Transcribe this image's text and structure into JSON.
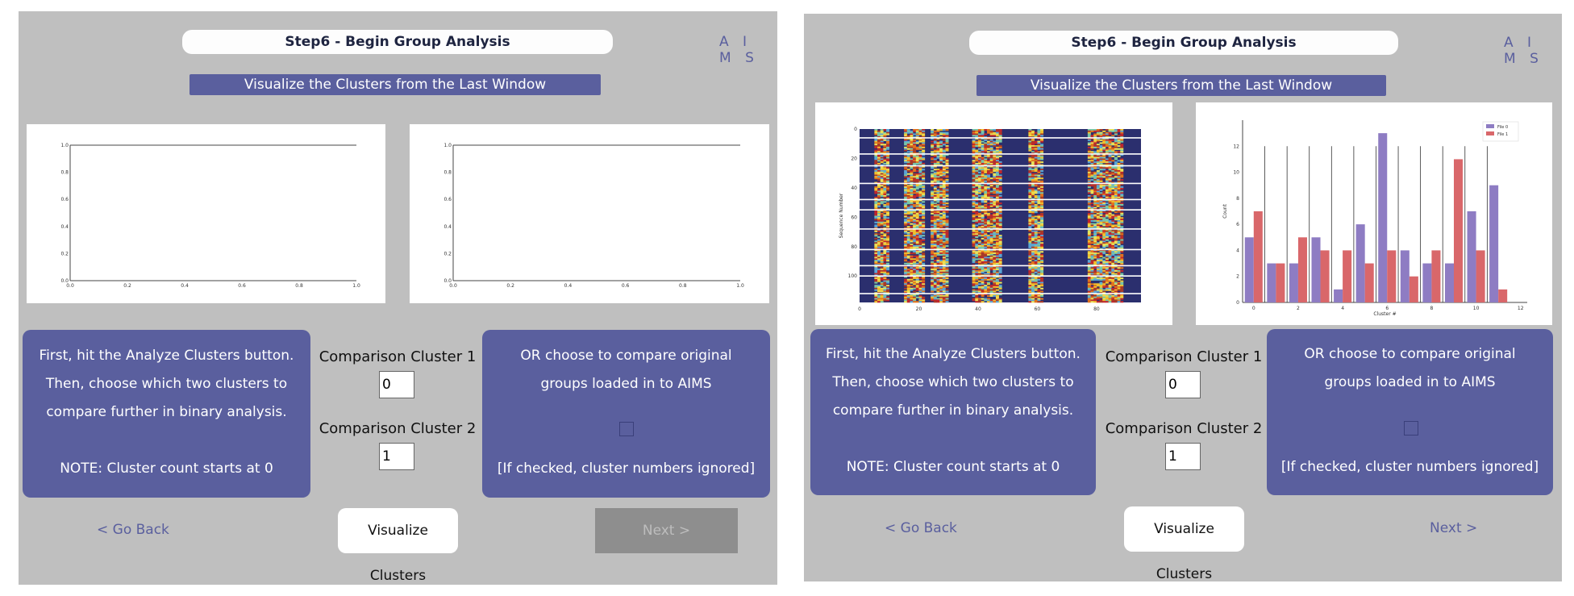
{
  "windows": [
    {
      "title": "Step6 - Begin Group Analysis",
      "brand": "A I M S",
      "banner": "Visualize the Clusters from the Last Window",
      "instructions": {
        "line1": "First, hit the Analyze Clusters button.",
        "line2": "Then, choose which two clusters to",
        "line3": "compare further in binary analysis.",
        "note": "NOTE: Cluster count starts at 0"
      },
      "comparison1": {
        "label": "Comparison Cluster 1",
        "value": "0"
      },
      "comparison2": {
        "label": "Comparison Cluster 2",
        "value": "1"
      },
      "original_groups": {
        "line1": "OR choose to compare original",
        "line2": "groups loaded in to AIMS",
        "checked": false,
        "note": "[If checked, cluster numbers ignored]"
      },
      "go_back": "< Go Back",
      "visualize": "Visualize Clusters",
      "next": {
        "label": "Next >",
        "enabled": false
      }
    },
    {
      "title": "Step6 - Begin Group Analysis",
      "brand": "A I M S",
      "banner": "Visualize the Clusters from the Last Window",
      "instructions": {
        "line1": "First, hit the Analyze Clusters button.",
        "line2": "Then, choose which two clusters to",
        "line3": "compare further in binary analysis.",
        "note": "NOTE: Cluster count starts at 0"
      },
      "comparison1": {
        "label": "Comparison Cluster 1",
        "value": "0"
      },
      "comparison2": {
        "label": "Comparison Cluster 2",
        "value": "1"
      },
      "original_groups": {
        "line1": "OR choose to compare original",
        "line2": "groups loaded in to AIMS",
        "checked": false,
        "note": "[If checked, cluster numbers ignored]"
      },
      "go_back": "< Go Back",
      "visualize": "Visualize Clusters",
      "next": {
        "label": "Next >",
        "enabled": true
      }
    }
  ],
  "colors": {
    "window_bg": "#bfbfbf",
    "accent": "#5a5f9e",
    "file0": "#8e7cc3",
    "file1": "#d9676a"
  },
  "chart_data": [
    {
      "type": "line",
      "series": [],
      "xlim": [
        0,
        1
      ],
      "ylim": [
        0,
        1
      ],
      "xticks": [
        "0.0",
        "0.2",
        "0.4",
        "0.6",
        "0.8",
        "1.0"
      ],
      "yticks": [
        "0.0",
        "0.2",
        "0.4",
        "0.6",
        "0.8",
        "1.0"
      ]
    },
    {
      "type": "line",
      "series": [],
      "xlim": [
        0,
        1
      ],
      "ylim": [
        0,
        1
      ],
      "xticks": [
        "0.0",
        "0.2",
        "0.4",
        "0.6",
        "0.8",
        "1.0"
      ],
      "yticks": [
        "0.0",
        "0.2",
        "0.4",
        "0.6",
        "0.8",
        "1.0"
      ]
    },
    {
      "type": "heatmap",
      "ylabel": "Sequence Number",
      "xticks": [
        "0",
        "20",
        "40",
        "60",
        "80"
      ],
      "yticks": [
        "0",
        "20",
        "40",
        "60",
        "80",
        "100"
      ],
      "xlim": [
        0,
        95
      ],
      "ylim": [
        0,
        118
      ],
      "cluster_separators_y": [
        6,
        17,
        25,
        37,
        48,
        55,
        68,
        82,
        93,
        100,
        112
      ]
    },
    {
      "type": "bar",
      "xlabel": "Cluster #",
      "ylabel": "Count",
      "categories": [
        "0",
        "1",
        "2",
        "3",
        "4",
        "5",
        "6",
        "7",
        "8",
        "9",
        "10",
        "11"
      ],
      "xticks": [
        "0",
        "2",
        "4",
        "6",
        "8",
        "10",
        "12"
      ],
      "yticks": [
        "0",
        "2",
        "4",
        "6",
        "8",
        "10",
        "12"
      ],
      "ylim": [
        0,
        14
      ],
      "legend_position": "top-right",
      "series": [
        {
          "name": "File 0",
          "values": [
            5,
            3,
            3,
            5,
            1,
            6,
            13,
            4,
            3,
            3,
            7,
            9
          ]
        },
        {
          "name": "File 1",
          "values": [
            7,
            3,
            5,
            4,
            4,
            3,
            4,
            2,
            4,
            11,
            4,
            1
          ]
        }
      ],
      "vertical_lines_y": 12
    }
  ]
}
